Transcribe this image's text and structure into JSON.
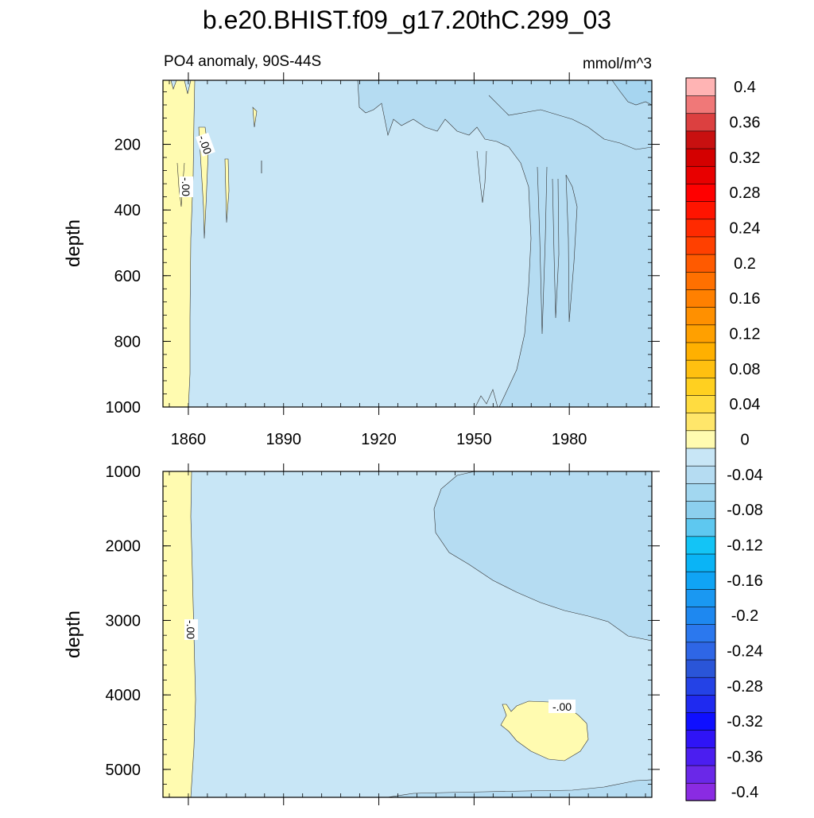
{
  "title": "b.e20.BHIST.f09_g17.20thC.299_03",
  "chart_data": {
    "type": "contour",
    "subtitle_left": "PO4 anomaly, 90S-44S",
    "subtitle_right": "mmol/m^3",
    "xlabel_ticks": [
      "1860",
      "1890",
      "1920",
      "1950",
      "1980"
    ],
    "x_ticks": [
      1860,
      1890,
      1920,
      1950,
      1980
    ],
    "xlim": [
      1852,
      2006
    ],
    "colorbar": {
      "levels": [
        -0.4,
        -0.38,
        -0.36,
        -0.34,
        -0.32,
        -0.3,
        -0.28,
        -0.26,
        -0.24,
        -0.22,
        -0.2,
        -0.18,
        -0.16,
        -0.14,
        -0.12,
        -0.1,
        -0.08,
        -0.06,
        -0.04,
        -0.02,
        0,
        0.02,
        0.04,
        0.06,
        0.08,
        0.1,
        0.12,
        0.14,
        0.16,
        0.18,
        0.2,
        0.22,
        0.24,
        0.26,
        0.28,
        0.3,
        0.32,
        0.34,
        0.36,
        0.38,
        0.4
      ],
      "tick_labels": [
        "-0.4",
        "-0.36",
        "-0.32",
        "-0.28",
        "-0.24",
        "-0.2",
        "-0.16",
        "-0.12",
        "-0.08",
        "-0.04",
        "0",
        "0.04",
        "0.08",
        "0.12",
        "0.16",
        "0.2",
        "0.24",
        "0.28",
        "0.32",
        "0.36",
        "0.4"
      ],
      "colors": [
        "#8a2be2",
        "#6a28e8",
        "#4b1ef0",
        "#2f14f6",
        "#0f0fff",
        "#1f2af0",
        "#2442e6",
        "#2a55d8",
        "#2e66e6",
        "#2b78ee",
        "#1e88f0",
        "#1a98f2",
        "#10a4f4",
        "#0ab4f6",
        "#13c4f6",
        "#5ec8f0",
        "#8ccfee",
        "#a2d7f0",
        "#b5dcf2",
        "#c8e6f6",
        "#fffbb0",
        "#ffe66a",
        "#ffdc40",
        "#ffd020",
        "#ffc010",
        "#ffb000",
        "#ffa000",
        "#ff9000",
        "#ff8000",
        "#ff7000",
        "#ff5a00",
        "#ff4000",
        "#ff2a00",
        "#ff1400",
        "#ff0000",
        "#e80000",
        "#d40000",
        "#c81010",
        "#dc4040",
        "#f07878",
        "#ffb4b4"
      ]
    },
    "panels": [
      {
        "name": "upper",
        "ylabel": "depth",
        "y_ticks": [
          200,
          400,
          600,
          800,
          1000
        ],
        "ylim": [
          5,
          1000
        ],
        "y_reversed": true,
        "contour_labels": [
          "-.00",
          "-.00"
        ]
      },
      {
        "name": "lower",
        "ylabel": "depth",
        "y_ticks": [
          1000,
          2000,
          3000,
          4000,
          5000
        ],
        "ylim": [
          1000,
          5375
        ],
        "y_reversed": true,
        "contour_labels": [
          "-.00",
          "-.00"
        ]
      }
    ]
  }
}
